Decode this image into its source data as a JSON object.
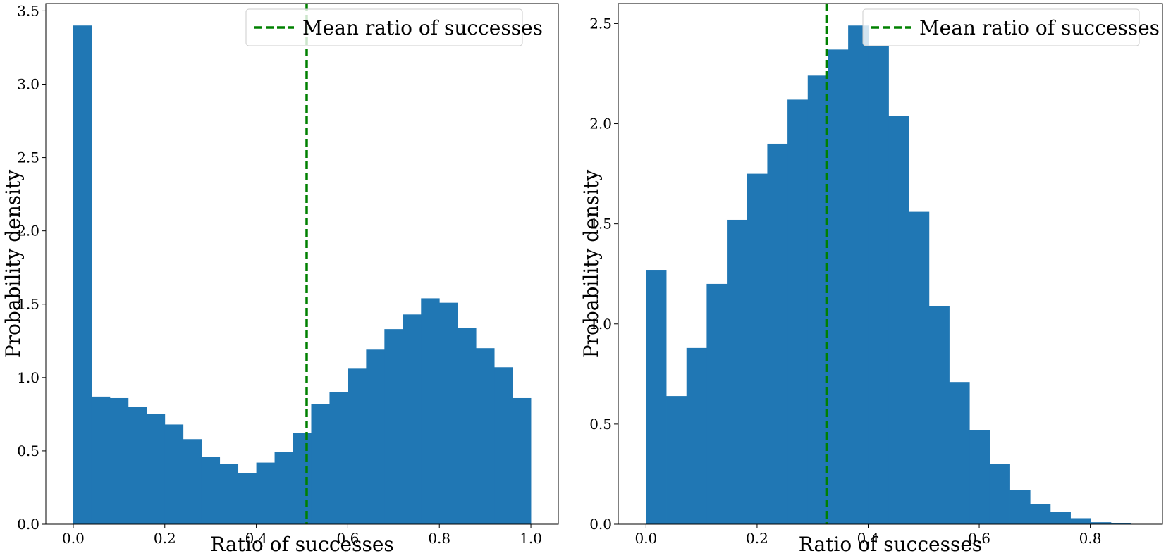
{
  "colors": {
    "bar": "#2077b4",
    "mean_line": "#008000",
    "axes": "#000000",
    "legend_border": "#cccccc"
  },
  "chart_data": [
    {
      "type": "bar",
      "subtype": "histogram",
      "xlabel": "Ratio of successes",
      "ylabel": "Probability density",
      "xlim": [
        -0.06,
        1.06
      ],
      "ylim": [
        0,
        3.55
      ],
      "xticks": [
        0.0,
        0.2,
        0.4,
        0.6,
        0.8,
        1.0
      ],
      "xtick_labels": [
        "0.0",
        "0.2",
        "0.4",
        "0.6",
        "0.8",
        "1.0"
      ],
      "yticks": [
        0.0,
        0.5,
        1.0,
        1.5,
        2.0,
        2.5,
        3.0,
        3.5
      ],
      "ytick_labels": [
        "0.0",
        "0.5",
        "1.0",
        "1.5",
        "2.0",
        "2.5",
        "3.0",
        "3.5"
      ],
      "bin_edges": [
        0.0,
        0.04,
        0.08,
        0.12,
        0.16,
        0.2,
        0.24,
        0.28,
        0.32,
        0.36,
        0.4,
        0.44,
        0.48,
        0.52,
        0.56,
        0.6,
        0.64,
        0.68,
        0.72,
        0.76,
        0.8,
        0.84,
        0.88,
        0.92,
        0.96,
        1.0
      ],
      "values": [
        3.4,
        0.87,
        0.86,
        0.8,
        0.75,
        0.68,
        0.58,
        0.46,
        0.41,
        0.35,
        0.42,
        0.49,
        0.62,
        0.82,
        0.9,
        1.06,
        1.19,
        1.33,
        1.43,
        1.54,
        1.51,
        1.34,
        1.2,
        1.07,
        0.86
      ],
      "mean_line": {
        "x": 0.51,
        "label": "Mean ratio of successes"
      },
      "legend": {
        "position": "upper right",
        "entries": [
          "Mean ratio of successes"
        ]
      },
      "grid": false
    },
    {
      "type": "bar",
      "subtype": "histogram",
      "xlabel": "Ratio of successes",
      "ylabel": "Probability density",
      "xlim": [
        -0.05,
        0.93
      ],
      "ylim": [
        0,
        2.6
      ],
      "xticks": [
        0.0,
        0.2,
        0.4,
        0.6,
        0.8
      ],
      "xtick_labels": [
        "0.0",
        "0.2",
        "0.4",
        "0.6",
        "0.8"
      ],
      "yticks": [
        0.0,
        0.5,
        1.0,
        1.5,
        2.0,
        2.5
      ],
      "ytick_labels": [
        "0.0",
        "0.5",
        "1.0",
        "1.5",
        "2.0",
        "2.5"
      ],
      "bin_edges": [
        0.0,
        0.0364,
        0.0728,
        0.1092,
        0.1456,
        0.182,
        0.2184,
        0.2548,
        0.2912,
        0.3276,
        0.364,
        0.4004,
        0.4368,
        0.4732,
        0.5096,
        0.546,
        0.5824,
        0.6188,
        0.6552,
        0.6916,
        0.728,
        0.7644,
        0.8008,
        0.8372,
        0.8736
      ],
      "values": [
        1.27,
        0.64,
        0.88,
        1.2,
        1.52,
        1.75,
        1.9,
        2.12,
        2.24,
        2.37,
        2.49,
        2.39,
        2.04,
        1.56,
        1.09,
        0.71,
        0.47,
        0.3,
        0.17,
        0.1,
        0.06,
        0.03,
        0.01,
        0.005
      ],
      "mean_line": {
        "x": 0.325,
        "label": "Mean ratio of successes"
      },
      "legend": {
        "position": "upper right",
        "entries": [
          "Mean ratio of successes"
        ]
      },
      "grid": false
    }
  ]
}
